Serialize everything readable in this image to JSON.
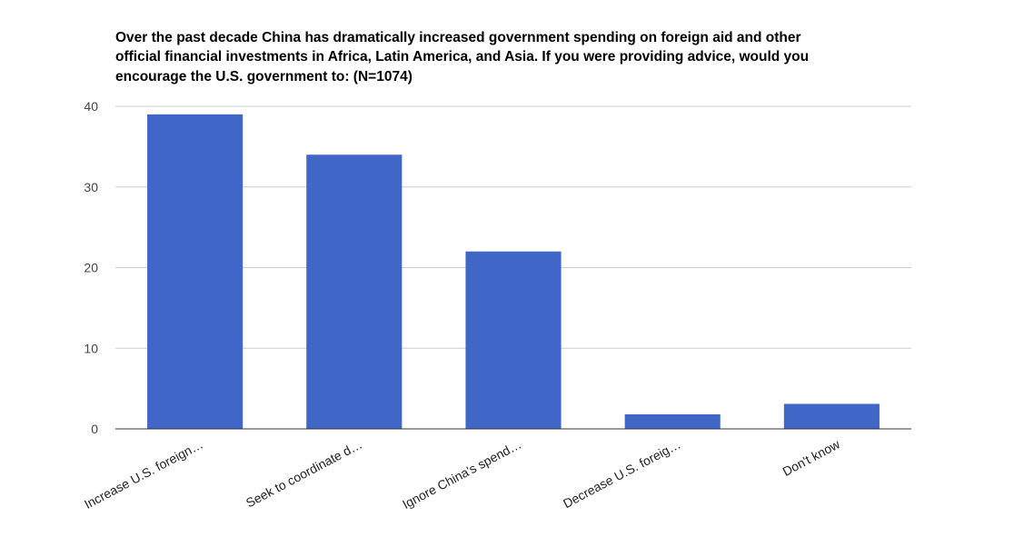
{
  "chart_data": {
    "type": "bar",
    "title_lines": [
      "Over the past decade China has dramatically increased government spending on foreign aid and other",
      "official financial investments in Africa, Latin America, and Asia. If you were providing advice, would you",
      "encourage the U.S. government to: (N=1074)"
    ],
    "categories": [
      "Increase U.S. foreign…",
      "Seek to coordinate d…",
      "Ignore China's spend…",
      "Decrease U.S. foreig…",
      "Don't know"
    ],
    "values": [
      39,
      34,
      22,
      1.8,
      3.1
    ],
    "ylim": [
      0,
      40
    ],
    "yticks": [
      0,
      10,
      20,
      30,
      40
    ],
    "xlabel": "",
    "ylabel": "",
    "grid": true,
    "legend": "none",
    "bar_color": "#4066C8"
  }
}
